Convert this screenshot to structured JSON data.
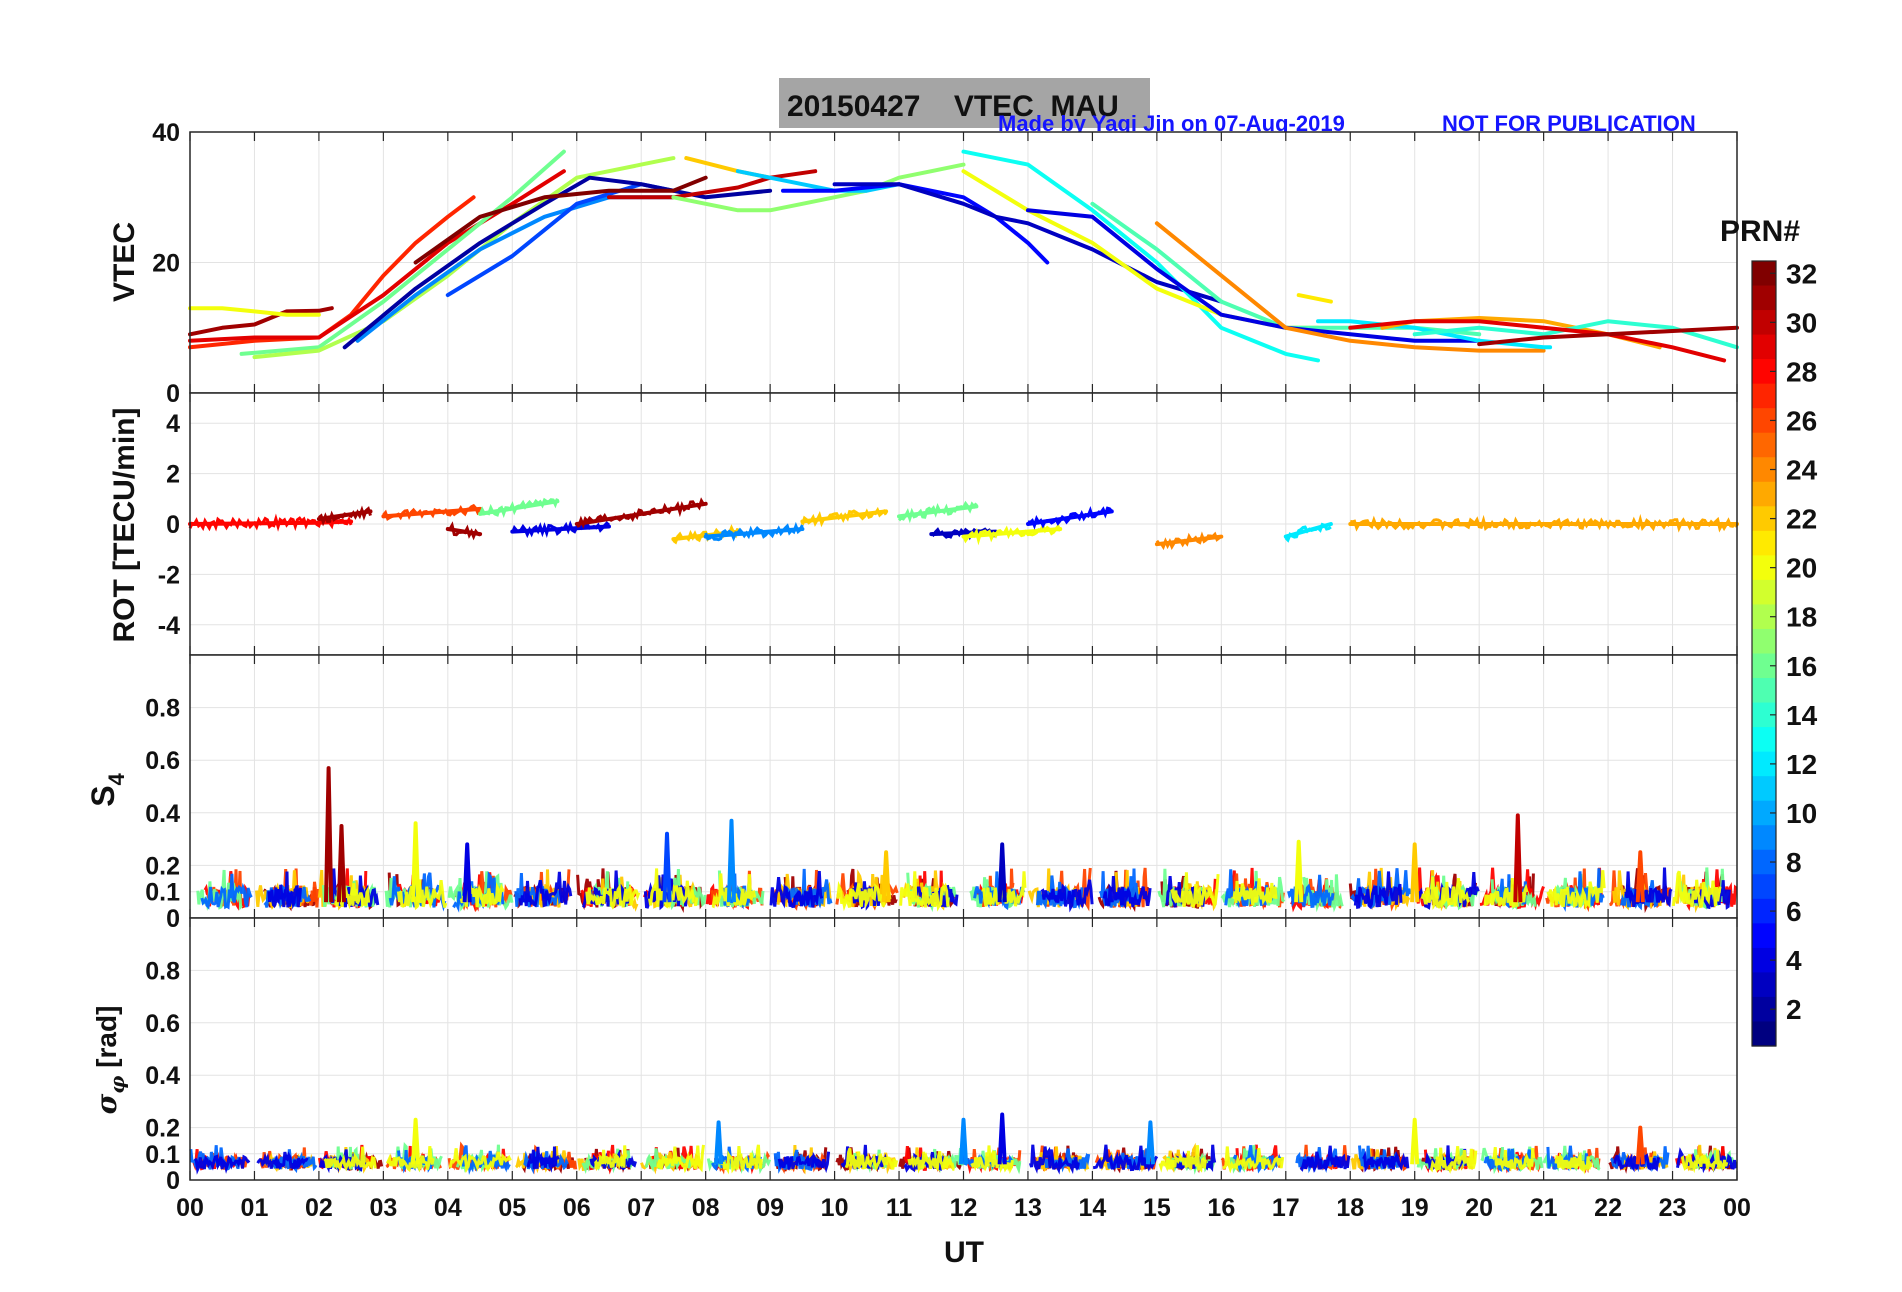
{
  "header": {
    "title": "20150427    VTEC  MAU",
    "credit": "Made by Yaqi Jin on 07-Aug-2019",
    "notice": "NOT FOR PUBLICATION"
  },
  "colorbar": {
    "title": "PRN#",
    "min": 1,
    "max": 32,
    "ticks": [
      "2",
      "4",
      "6",
      "8",
      "10",
      "12",
      "14",
      "16",
      "18",
      "20",
      "22",
      "24",
      "26",
      "28",
      "30",
      "32"
    ]
  },
  "colors": {
    "title_box": "#a5a5a5",
    "credit_text": "#1515ff",
    "grid": "#e3e3e3",
    "axis": "#262626"
  },
  "chart_data": [
    {
      "type": "line",
      "id": "vtec",
      "title": "20150427    VTEC  MAU",
      "xlabel": "",
      "ylabel": "VTEC",
      "xlim": [
        0,
        24
      ],
      "ylim": [
        0,
        40
      ],
      "yticks": [
        "0",
        "20",
        "40"
      ],
      "series": [
        {
          "name": "PRN 31",
          "prn": 31,
          "x": [
            0,
            0.5,
            1.0,
            1.5,
            2.0,
            2.2
          ],
          "y": [
            9,
            10,
            10.5,
            12.5,
            12.6,
            13
          ]
        },
        {
          "name": "PRN 20",
          "prn": 20,
          "x": [
            0,
            0.5,
            1.0,
            1.5,
            2.0
          ],
          "y": [
            13,
            13,
            12.5,
            12,
            12
          ]
        },
        {
          "name": "PRN 27",
          "prn": 27,
          "x": [
            0,
            1.0,
            2.0,
            2.5,
            3.0,
            3.5,
            4.0,
            4.4
          ],
          "y": [
            7,
            8,
            8.5,
            12,
            18,
            23,
            27,
            30
          ]
        },
        {
          "name": "PRN 29",
          "prn": 29,
          "x": [
            0,
            1.0,
            2.0,
            3.0,
            4.0,
            5.0,
            5.8
          ],
          "y": [
            8,
            8.5,
            8.5,
            15,
            23,
            29,
            34
          ]
        },
        {
          "name": "PRN 16",
          "prn": 16,
          "x": [
            0.8,
            2.0,
            3.0,
            4.0,
            5.0,
            5.8
          ],
          "y": [
            6,
            7,
            14,
            22,
            30,
            37
          ]
        },
        {
          "name": "PRN 18",
          "prn": 18,
          "x": [
            1.0,
            2.0,
            3.0,
            4.0,
            5.0,
            6.0,
            7.0,
            7.5
          ],
          "y": [
            5.5,
            6.5,
            11,
            18,
            26,
            33,
            35,
            36
          ]
        },
        {
          "name": "PRN 22",
          "prn": 22,
          "x": [
            7.7,
            8.5,
            9.0
          ],
          "y": [
            36,
            34,
            33
          ]
        },
        {
          "name": "PRN 9",
          "prn": 9,
          "x": [
            2.6,
            3.5,
            4.5,
            5.5,
            6.5,
            7.5
          ],
          "y": [
            8,
            15,
            22,
            27,
            30,
            30
          ]
        },
        {
          "name": "PRN 7",
          "prn": 7,
          "x": [
            4.0,
            5.0,
            6.0,
            7.0,
            7.5
          ],
          "y": [
            15,
            21,
            29,
            32,
            31
          ]
        },
        {
          "name": "PRN 2",
          "prn": 2,
          "x": [
            2.4,
            3.5,
            4.5,
            5.5,
            6.2,
            7.0,
            8.0,
            9.0
          ],
          "y": [
            7,
            16,
            23,
            29,
            33,
            32,
            30,
            31
          ]
        },
        {
          "name": "PRN 32",
          "prn": 32,
          "x": [
            3.5,
            4.5,
            5.5,
            6.5,
            7.5,
            8.0
          ],
          "y": [
            20,
            27,
            30,
            31,
            31,
            33
          ]
        },
        {
          "name": "PRN 30",
          "prn": 30,
          "x": [
            6.5,
            7.5,
            8.5,
            9.0,
            9.7
          ],
          "y": [
            30,
            30,
            31.5,
            33,
            34
          ]
        },
        {
          "name": "PRN 17",
          "prn": 17,
          "x": [
            7.5,
            8.5,
            9.0,
            9.5,
            10.5,
            11.0,
            11.5,
            12.0
          ],
          "y": [
            30,
            28,
            28,
            29,
            31,
            33,
            34,
            35
          ]
        },
        {
          "name": "PRN 11",
          "prn": 11,
          "x": [
            8.5,
            9.0,
            9.5,
            10.0,
            10.5,
            11.0
          ],
          "y": [
            34,
            33,
            32,
            31,
            31,
            32
          ]
        },
        {
          "name": "PRN 5",
          "prn": 5,
          "x": [
            9.2,
            10.0,
            11.0,
            12.0,
            12.5,
            13.0,
            13.3
          ],
          "y": [
            31,
            31,
            32,
            30,
            27,
            23,
            20
          ]
        },
        {
          "name": "PRN 3",
          "prn": 3,
          "x": [
            10.0,
            11.0,
            12.0,
            12.5,
            13.0,
            14.0,
            15.0,
            16.0
          ],
          "y": [
            32,
            32,
            29,
            27,
            26,
            22,
            17,
            14
          ]
        },
        {
          "name": "PRN 13",
          "prn": 13,
          "x": [
            12.0,
            13.0,
            14.0,
            15.0,
            15.5,
            16.0,
            17.0,
            17.5
          ],
          "y": [
            37,
            35,
            28,
            20,
            15,
            10,
            6,
            5
          ]
        },
        {
          "name": "PRN 20b",
          "prn": 20,
          "x": [
            12.0,
            13.0,
            14.0,
            15.0,
            16.0,
            17.0,
            17.5
          ],
          "y": [
            34,
            28,
            23,
            16,
            12,
            10,
            10
          ]
        },
        {
          "name": "PRN 15",
          "prn": 15,
          "x": [
            14.0,
            15.0,
            16.0,
            17.0,
            18.0,
            19.0,
            20.0
          ],
          "y": [
            29,
            22,
            14,
            10,
            10,
            10,
            9
          ]
        },
        {
          "name": "PRN 4",
          "prn": 4,
          "x": [
            13.0,
            14.0,
            15.0,
            16.0,
            17.0,
            18.0,
            19.0,
            20.0
          ],
          "y": [
            28,
            27,
            19,
            12,
            10,
            9,
            8,
            8
          ]
        },
        {
          "name": "PRN 24",
          "prn": 24,
          "x": [
            15.0,
            16.0,
            17.0,
            18.0,
            19.0,
            20.0,
            21.0
          ],
          "y": [
            26,
            18,
            10,
            8,
            7,
            6.5,
            6.5
          ]
        },
        {
          "name": "PRN 21",
          "prn": 21,
          "x": [
            17.2,
            17.7
          ],
          "y": [
            15,
            14
          ]
        },
        {
          "name": "PRN 12",
          "prn": 12,
          "x": [
            17.5,
            18.0,
            19.0,
            20.0,
            21.0,
            21.1
          ],
          "y": [
            11,
            11,
            10,
            8,
            7,
            7
          ]
        },
        {
          "name": "PRN 23",
          "prn": 23,
          "x": [
            18.5,
            19.0,
            20.0,
            21.0,
            22.0,
            22.8
          ],
          "y": [
            10,
            11,
            11.5,
            11,
            9,
            7
          ]
        },
        {
          "name": "PRN 14",
          "prn": 14,
          "x": [
            19.0,
            20.0,
            21.0,
            22.0,
            23.0,
            24.0
          ],
          "y": [
            9,
            10,
            9,
            11,
            10,
            7
          ]
        },
        {
          "name": "PRN 29b",
          "prn": 29,
          "x": [
            18.0,
            19.0,
            20.0,
            21.0,
            22.0,
            23.0,
            23.8
          ],
          "y": [
            10,
            11,
            11,
            10,
            9,
            7,
            5
          ]
        },
        {
          "name": "PRN 31b",
          "prn": 31,
          "x": [
            20.0,
            21.0,
            22.0,
            23.0,
            24.0
          ],
          "y": [
            7.5,
            8.5,
            9,
            9.5,
            10
          ]
        }
      ]
    },
    {
      "type": "line",
      "id": "rot",
      "xlabel": "",
      "ylabel": "ROT [TECU/min]",
      "xlim": [
        0,
        24
      ],
      "ylim": [
        -5.2,
        5.2
      ],
      "yticks": [
        "-4",
        "-2",
        "0",
        "2",
        "4"
      ],
      "series": [
        {
          "name": "PRN 28",
          "prn": 28,
          "x": [
            0,
            2,
            2.5
          ],
          "y": [
            0,
            0.05,
            0.1
          ]
        },
        {
          "name": "PRN 31",
          "prn": 31,
          "x": [
            2,
            2.8
          ],
          "y": [
            0.2,
            0.5
          ]
        },
        {
          "name": "PRN 26",
          "prn": 26,
          "x": [
            3,
            4.5
          ],
          "y": [
            0.3,
            0.6
          ]
        },
        {
          "name": "PRN 16",
          "prn": 16,
          "x": [
            4.5,
            5.7
          ],
          "y": [
            0.4,
            0.9
          ]
        },
        {
          "name": "PRN 31b",
          "prn": 31,
          "x": [
            4,
            4.5
          ],
          "y": [
            -0.2,
            -0.4
          ]
        },
        {
          "name": "PRN 4",
          "prn": 4,
          "x": [
            5,
            6.5
          ],
          "y": [
            -0.3,
            -0.1
          ]
        },
        {
          "name": "PRN 31c",
          "prn": 31,
          "x": [
            6,
            8
          ],
          "y": [
            0,
            0.8
          ]
        },
        {
          "name": "PRN 22",
          "prn": 22,
          "x": [
            7.5,
            8.5
          ],
          "y": [
            -0.6,
            -0.3
          ]
        },
        {
          "name": "PRN 9",
          "prn": 9,
          "x": [
            8,
            9.5
          ],
          "y": [
            -0.5,
            -0.2
          ]
        },
        {
          "name": "PRN 22b",
          "prn": 22,
          "x": [
            9.5,
            10.8
          ],
          "y": [
            0.1,
            0.5
          ]
        },
        {
          "name": "PRN 16b",
          "prn": 16,
          "x": [
            11,
            12.2
          ],
          "y": [
            0.3,
            0.7
          ]
        },
        {
          "name": "PRN 3",
          "prn": 3,
          "x": [
            11.5,
            12.5
          ],
          "y": [
            -0.4,
            -0.3
          ]
        },
        {
          "name": "PRN 20",
          "prn": 20,
          "x": [
            12,
            13.5
          ],
          "y": [
            -0.5,
            -0.2
          ]
        },
        {
          "name": "PRN 5",
          "prn": 5,
          "x": [
            13,
            14.3
          ],
          "y": [
            0,
            0.5
          ]
        },
        {
          "name": "PRN 24",
          "prn": 24,
          "x": [
            15,
            16
          ],
          "y": [
            -0.8,
            -0.5
          ]
        },
        {
          "name": "PRN 12",
          "prn": 12,
          "x": [
            17,
            17.7
          ],
          "y": [
            -0.5,
            0
          ]
        },
        {
          "name": "PRN 23",
          "prn": 23,
          "x": [
            18,
            24
          ],
          "y": [
            0,
            0
          ]
        }
      ]
    },
    {
      "type": "line",
      "id": "s4",
      "xlabel": "",
      "ylabel": "S4",
      "xlim": [
        0,
        24
      ],
      "ylim": [
        0,
        1
      ],
      "yticks": [
        "0",
        "0.1",
        "0.2",
        "0.4",
        "0.6",
        "0.8"
      ],
      "spikes": [
        {
          "prn": 31,
          "x": 2.15,
          "y": 0.57
        },
        {
          "prn": 31,
          "x": 2.35,
          "y": 0.35
        },
        {
          "prn": 20,
          "x": 3.5,
          "y": 0.36
        },
        {
          "prn": 4,
          "x": 4.3,
          "y": 0.28
        },
        {
          "prn": 7,
          "x": 7.4,
          "y": 0.32
        },
        {
          "prn": 9,
          "x": 8.4,
          "y": 0.37
        },
        {
          "prn": 22,
          "x": 10.8,
          "y": 0.25
        },
        {
          "prn": 3,
          "x": 12.6,
          "y": 0.28
        },
        {
          "prn": 20,
          "x": 17.2,
          "y": 0.29
        },
        {
          "prn": 22,
          "x": 19.0,
          "y": 0.28
        },
        {
          "prn": 30,
          "x": 20.6,
          "y": 0.39
        },
        {
          "prn": 26,
          "x": 22.5,
          "y": 0.25
        }
      ],
      "baseline": [
        0.04,
        0.12
      ]
    },
    {
      "type": "line",
      "id": "sigma_phi",
      "xlabel": "UT",
      "ylabel": "σφ [rad]",
      "xlim": [
        0,
        24
      ],
      "ylim": [
        0,
        1
      ],
      "xticks": [
        "00",
        "01",
        "02",
        "03",
        "04",
        "05",
        "06",
        "07",
        "08",
        "09",
        "10",
        "11",
        "12",
        "13",
        "14",
        "15",
        "16",
        "17",
        "18",
        "19",
        "20",
        "21",
        "22",
        "23",
        "00"
      ],
      "yticks": [
        "0",
        "0.1",
        "0.2",
        "0.4",
        "0.6",
        "0.8"
      ],
      "spikes": [
        {
          "prn": 20,
          "x": 3.5,
          "y": 0.23
        },
        {
          "prn": 9,
          "x": 8.2,
          "y": 0.22
        },
        {
          "prn": 9,
          "x": 12.0,
          "y": 0.23
        },
        {
          "prn": 4,
          "x": 12.6,
          "y": 0.25
        },
        {
          "prn": 9,
          "x": 14.9,
          "y": 0.22
        },
        {
          "prn": 20,
          "x": 19.0,
          "y": 0.23
        },
        {
          "prn": 26,
          "x": 22.5,
          "y": 0.2
        }
      ],
      "baseline": [
        0.04,
        0.09
      ]
    }
  ]
}
